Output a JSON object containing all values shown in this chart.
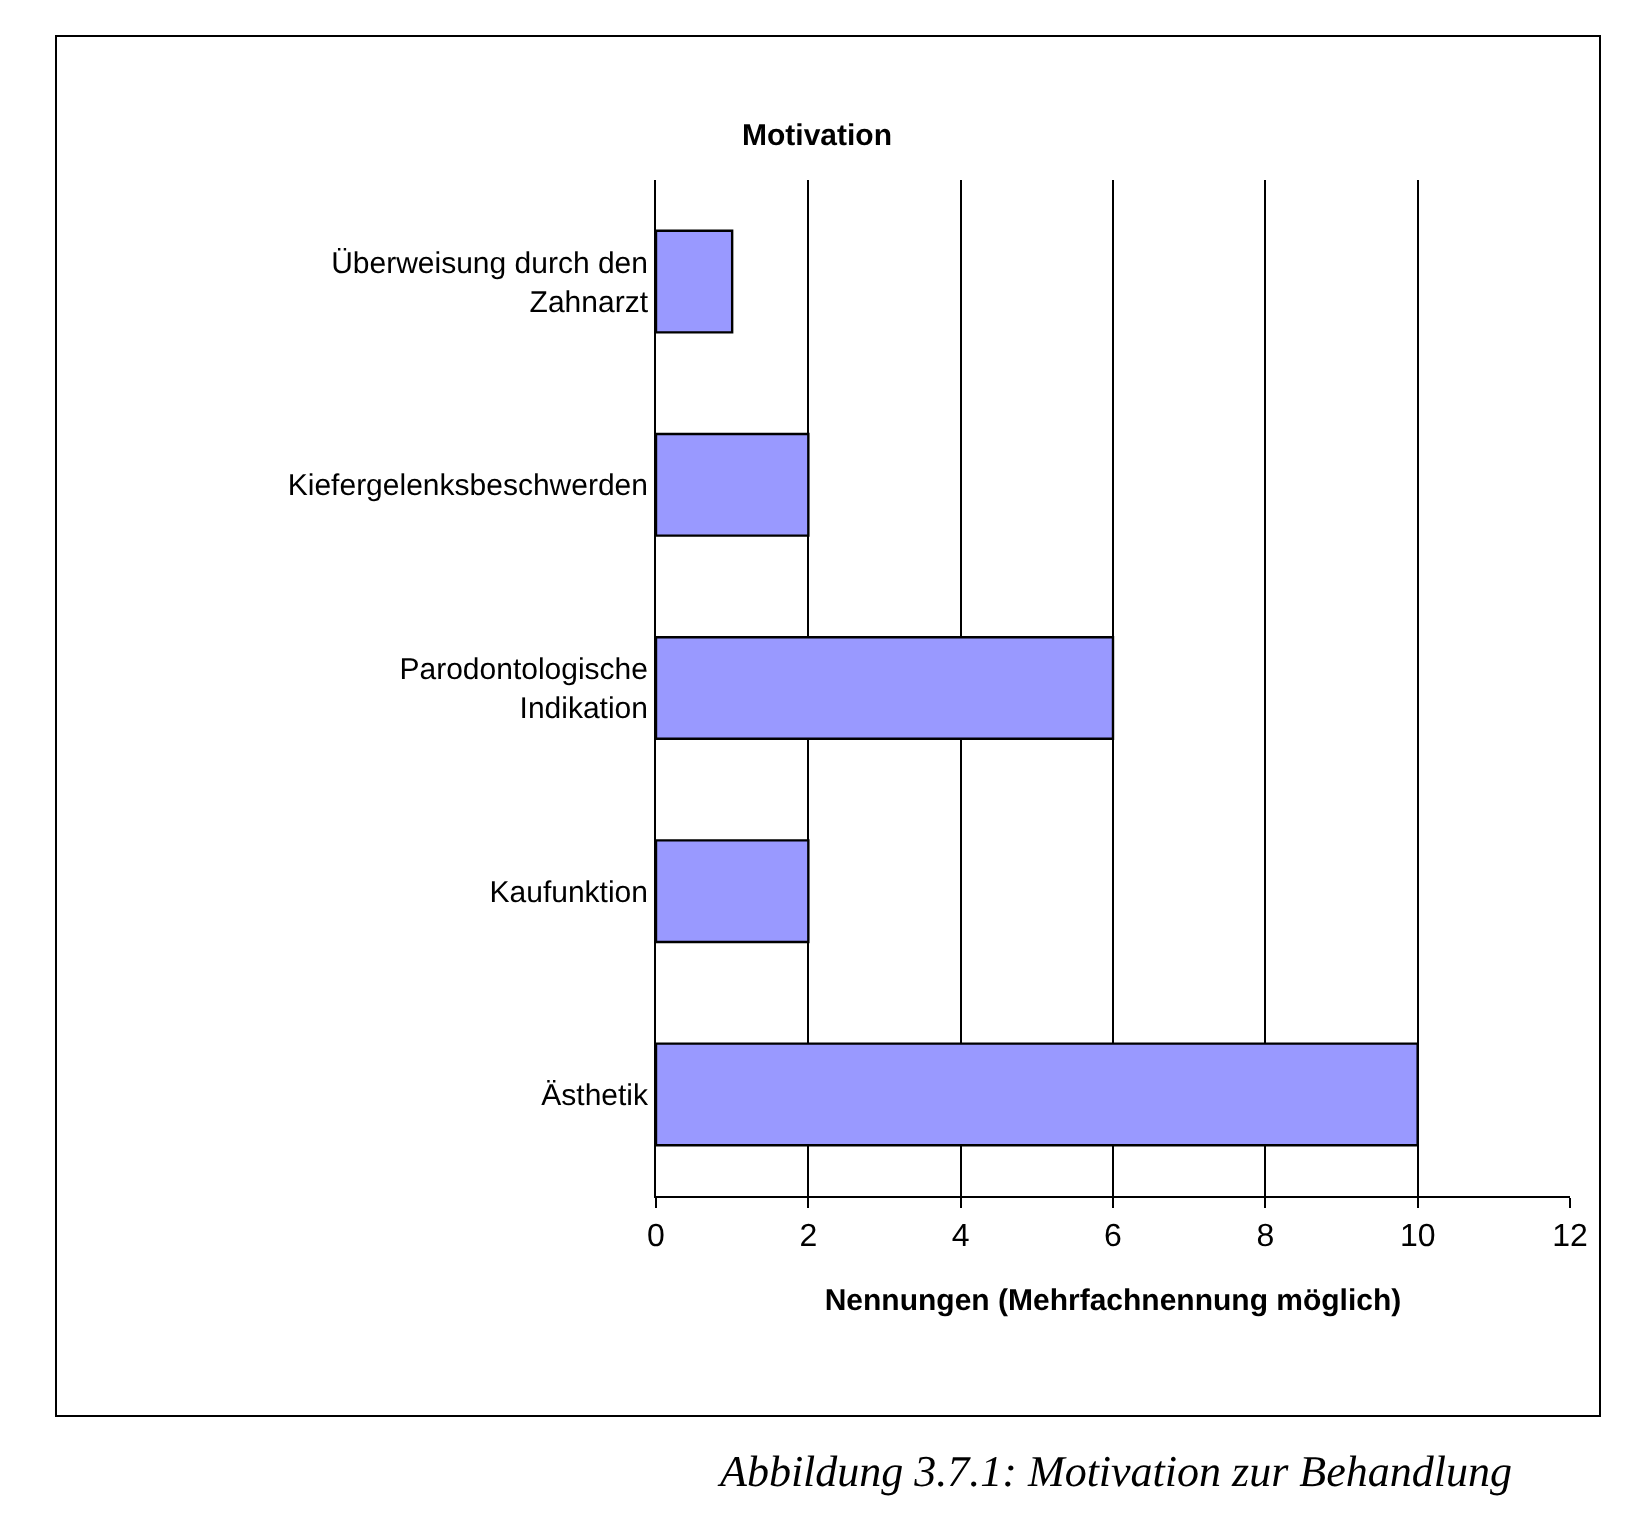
{
  "chart_data": {
    "type": "bar",
    "orientation": "horizontal",
    "title": "Motivation",
    "xlabel": "Nennungen (Mehrfachnennung möglich)",
    "categories": [
      "Überweisung durch den\nZahnarzt",
      "Kiefergelenksbeschwerden",
      "Parodontologische\nIndikation",
      "Kaufunktion",
      "Ästhetik"
    ],
    "values": [
      1,
      2,
      6,
      2,
      10
    ],
    "color": "#9999ff",
    "xlim": [
      0,
      12
    ],
    "xticks": [
      0,
      2,
      4,
      6,
      8,
      10,
      12
    ],
    "grid": "x",
    "legend": false,
    "annotations": [
      "Abbildung 3.7.1: Motivation zur Behandlung"
    ]
  }
}
